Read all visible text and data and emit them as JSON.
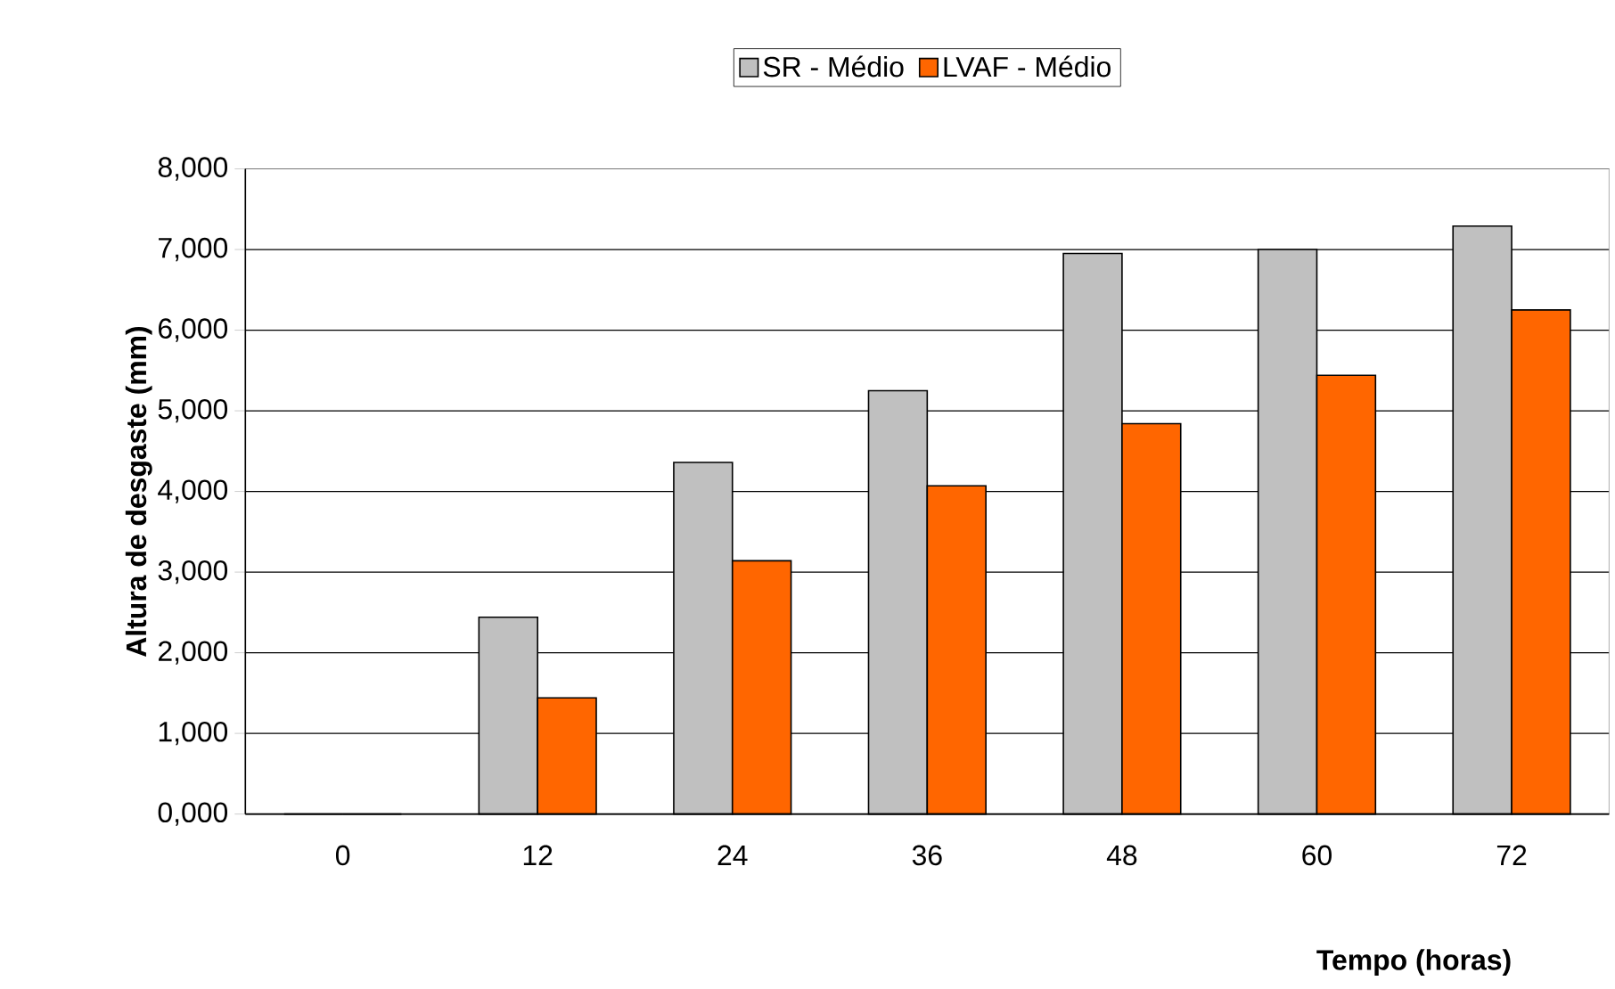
{
  "chart_data": {
    "type": "bar",
    "xlabel": "Tempo (horas)",
    "ylabel": "Altura de desgaste (mm)",
    "categories": [
      "0",
      "12",
      "24",
      "36",
      "48",
      "60",
      "72"
    ],
    "series": [
      {
        "name": "SR - Médio",
        "color": "#c0c0c0",
        "values": [
          0,
          2440,
          4360,
          5250,
          6950,
          7000,
          7290
        ]
      },
      {
        "name": "LVAF - Médio",
        "color": "#ff6600",
        "values": [
          0,
          1440,
          3140,
          4070,
          4840,
          5440,
          6250
        ]
      }
    ],
    "ylim": [
      0,
      8000
    ],
    "yticks": [
      {
        "value": 0,
        "label": "0,000"
      },
      {
        "value": 1000,
        "label": "1,000"
      },
      {
        "value": 2000,
        "label": "2,000"
      },
      {
        "value": 3000,
        "label": "3,000"
      },
      {
        "value": 4000,
        "label": "4,000"
      },
      {
        "value": 5000,
        "label": "5,000"
      },
      {
        "value": 6000,
        "label": "6,000"
      },
      {
        "value": 7000,
        "label": "7,000"
      },
      {
        "value": 8000,
        "label": "8,000"
      }
    ],
    "grid": "y",
    "legend": "top"
  }
}
